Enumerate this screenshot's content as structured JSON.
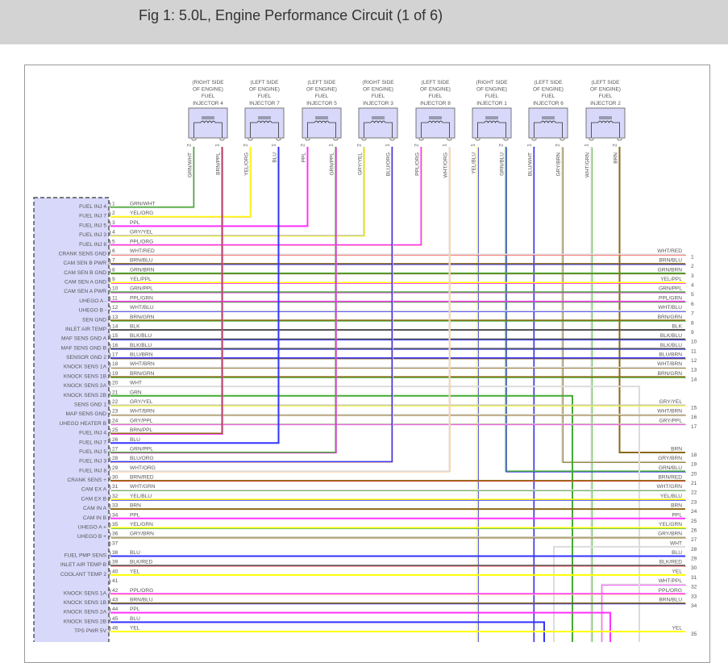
{
  "title": "Fig 1: 5.0L, Engine Performance Circuit (1 of 6)",
  "wire_colors": {
    "GRN": "#44aa33",
    "WHT": "#dcdcdc",
    "YEL": "#ffff00",
    "ORG": "#ffcc99",
    "PPL": "#ff33ff",
    "GRY": "#c8c8b4",
    "RED": "#ff5555",
    "BRN": "#8b6914",
    "BLU": "#3333ff",
    "BLK": "#555555"
  },
  "connector_fill": "#d8d8fa",
  "injectors": [
    {
      "side": "(RIGHT SIDE",
      "side2": "OF ENGINE)",
      "name1": "FUEL",
      "name2": "INJECTOR 4",
      "pins": [
        {
          "num": "2",
          "wire": "GRN/WHT"
        },
        {
          "num": "1",
          "wire": "BRN/PPL"
        }
      ]
    },
    {
      "side": "(LEFT SIDE",
      "side2": "OF ENGINE)",
      "name1": "FUEL",
      "name2": "INJECTOR 7",
      "pins": [
        {
          "num": "2",
          "wire": "YEL/ORG"
        },
        {
          "num": "1",
          "wire": "BLU"
        }
      ]
    },
    {
      "side": "(LEFT SIDE",
      "side2": "OF ENGINE)",
      "name1": "FUEL",
      "name2": "INJECTOR 5",
      "pins": [
        {
          "num": "2",
          "wire": "PPL"
        },
        {
          "num": "1",
          "wire": "GRN/PPL"
        }
      ]
    },
    {
      "side": "(RIGHT SIDE",
      "side2": "OF ENGINE)",
      "name1": "FUEL",
      "name2": "INJECTOR 3",
      "pins": [
        {
          "num": "2",
          "wire": "GRY/YEL"
        },
        {
          "num": "1",
          "wire": "BLU/ORG"
        }
      ]
    },
    {
      "side": "(LEFT SIDE",
      "side2": "OF ENGINE)",
      "name1": "FUEL",
      "name2": "INJECTOR 8",
      "pins": [
        {
          "num": "2",
          "wire": "PPL/ORG"
        },
        {
          "num": "1",
          "wire": "WHT/ORG"
        }
      ]
    },
    {
      "side": "(RIGHT SIDE",
      "side2": "OF ENGINE)",
      "name1": "FUEL",
      "name2": "INJECTOR 1",
      "pins": [
        {
          "num": "1",
          "wire": "YEL/BLU"
        },
        {
          "num": "2",
          "wire": "GRN/BLU"
        }
      ]
    },
    {
      "side": "(LEFT SIDE",
      "side2": "OF ENGINE)",
      "name1": "FUEL",
      "name2": "INJECTOR 6",
      "pins": [
        {
          "num": "1",
          "wire": "BLU/WHT"
        },
        {
          "num": "2",
          "wire": "GRY/BRN"
        }
      ]
    },
    {
      "side": "(LEFT SIDE",
      "side2": "OF ENGINE)",
      "name1": "FUEL",
      "name2": "INJECTOR 2",
      "pins": [
        {
          "num": "1",
          "wire": "WHT/GRN"
        },
        {
          "num": "2",
          "wire": "BRN"
        }
      ]
    }
  ],
  "ecu_pins": [
    {
      "pin": "1",
      "func": "FUEL INJ 4",
      "wire": "GRN/WHT"
    },
    {
      "pin": "2",
      "func": "FUEL INJ 7",
      "wire": "YEL/ORG"
    },
    {
      "pin": "3",
      "func": "FUEL INJ 5",
      "wire": "PPL"
    },
    {
      "pin": "4",
      "func": "FUEL INJ 3",
      "wire": "GRY/YEL"
    },
    {
      "pin": "5",
      "func": "FUEL INJ 8",
      "wire": "PPL/ORG"
    },
    {
      "pin": "6",
      "func": "CRANK SENS GND",
      "wire": "WHT/RED"
    },
    {
      "pin": "7",
      "func": "CAM SEN B PWR",
      "wire": "BRN/BLU"
    },
    {
      "pin": "8",
      "func": "CAM SEN B GND",
      "wire": "GRN/BRN"
    },
    {
      "pin": "9",
      "func": "CAM SEN A GND",
      "wire": "YEL/PPL"
    },
    {
      "pin": "10",
      "func": "CAM SEN A PWR",
      "wire": "GRN/PPL"
    },
    {
      "pin": "11",
      "func": "UHEGO A -",
      "wire": "PPL/GRN"
    },
    {
      "pin": "12",
      "func": "UHEGO B -",
      "wire": "WHT/BLU"
    },
    {
      "pin": "13",
      "func": "SEN GND",
      "wire": "BRN/GRN"
    },
    {
      "pin": "14",
      "func": "INLET AIR TEMP",
      "wire": "BLK"
    },
    {
      "pin": "15",
      "func": "MAF SENS GND A",
      "wire": "BLK/BLU"
    },
    {
      "pin": "16",
      "func": "MAF SENS GND B",
      "wire": "BLK/BLU"
    },
    {
      "pin": "17",
      "func": "SENSOR GND 2",
      "wire": "BLU/BRN"
    },
    {
      "pin": "18",
      "func": "KNOCK SENS 1A",
      "wire": "WHT/BRN"
    },
    {
      "pin": "19",
      "func": "KNOCK SENS 1B",
      "wire": "BRN/GRN"
    },
    {
      "pin": "20",
      "func": "KNOCK SENS 2A",
      "wire": "WHT"
    },
    {
      "pin": "21",
      "func": "KNOCK SENS 2B",
      "wire": "GRN"
    },
    {
      "pin": "22",
      "func": "SENS GND 1",
      "wire": "GRY/YEL"
    },
    {
      "pin": "23",
      "func": "MAP SENS GND",
      "wire": "WHT/BRN"
    },
    {
      "pin": "24",
      "func": "UHEGO HEATER B",
      "wire": "GRY/PPL"
    },
    {
      "pin": "25",
      "func": "FUEL INJ 4",
      "wire": "BRN/PPL"
    },
    {
      "pin": "26",
      "func": "FUEL INJ 7",
      "wire": "BLU"
    },
    {
      "pin": "27",
      "func": "FUEL INJ 5",
      "wire": "GRN/PPL"
    },
    {
      "pin": "28",
      "func": "FUEL INJ 3",
      "wire": "BLU/ORG"
    },
    {
      "pin": "29",
      "func": "FUEL INJ 8",
      "wire": "WHT/ORG"
    },
    {
      "pin": "30",
      "func": "CRANK SENS +",
      "wire": "BRN/RED"
    },
    {
      "pin": "31",
      "func": "CAM EX A",
      "wire": "WHT/GRN"
    },
    {
      "pin": "32",
      "func": "CAM EX B",
      "wire": "YEL/BLU"
    },
    {
      "pin": "33",
      "func": "CAM IN A",
      "wire": "BRN"
    },
    {
      "pin": "34",
      "func": "CAM IN B",
      "wire": "PPL"
    },
    {
      "pin": "35",
      "func": "UHEGO A +",
      "wire": "YEL/GRN"
    },
    {
      "pin": "36",
      "func": "UHEGO B +",
      "wire": "GRY/BRN"
    },
    {
      "pin": "37",
      "func": "",
      "wire": ""
    },
    {
      "pin": "38",
      "func": "FUEL PMP SENS",
      "wire": "BLU"
    },
    {
      "pin": "39",
      "func": "INLET AIR TEMP B",
      "wire": "BLK/RED"
    },
    {
      "pin": "40",
      "func": "COOLANT TEMP 2",
      "wire": "YEL"
    },
    {
      "pin": "41",
      "func": "",
      "wire": ""
    },
    {
      "pin": "42",
      "func": "KNOCK SENS 1A",
      "wire": "PPL/ORG"
    },
    {
      "pin": "43",
      "func": "KNOCK SENS 1B",
      "wire": "BRN/BLU"
    },
    {
      "pin": "44",
      "func": "KNOCK SENS 2A",
      "wire": "PPL"
    },
    {
      "pin": "45",
      "func": "KNOCK SENS 2B",
      "wire": "BLU"
    },
    {
      "pin": "46",
      "func": "TPS PWR 5V",
      "wire": "YEL"
    }
  ],
  "right_terminals": [
    {
      "num": "1",
      "wire": "WHT/RED"
    },
    {
      "num": "2",
      "wire": "BRN/BLU"
    },
    {
      "num": "3",
      "wire": "GRN/BRN"
    },
    {
      "num": "4",
      "wire": "YEL/PPL"
    },
    {
      "num": "5",
      "wire": "GRN/PPL"
    },
    {
      "num": "6",
      "wire": "PPL/GRN"
    },
    {
      "num": "7",
      "wire": "WHT/BLU"
    },
    {
      "num": "8",
      "wire": "BRN/GRN"
    },
    {
      "num": "9",
      "wire": "BLK"
    },
    {
      "num": "10",
      "wire": "BLK/BLU"
    },
    {
      "num": "11",
      "wire": "BLK/BLU"
    },
    {
      "num": "12",
      "wire": "BLU/BRN"
    },
    {
      "num": "13",
      "wire": "WHT/BRN"
    },
    {
      "num": "14",
      "wire": "BRN/GRN"
    },
    {
      "num": "15",
      "wire": "GRY/YEL"
    },
    {
      "num": "16",
      "wire": "WHT/BRN"
    },
    {
      "num": "17",
      "wire": "GRY/PPL"
    },
    {
      "num": "18",
      "wire": "BRN"
    },
    {
      "num": "19",
      "wire": "GRY/BRN"
    },
    {
      "num": "20",
      "wire": "GRN/BLU"
    },
    {
      "num": "21",
      "wire": "BRN/RED"
    },
    {
      "num": "22",
      "wire": "WHT/GRN"
    },
    {
      "num": "23",
      "wire": "YEL/BLU"
    },
    {
      "num": "24",
      "wire": "BRN"
    },
    {
      "num": "25",
      "wire": "PPL"
    },
    {
      "num": "26",
      "wire": "YEL/GRN"
    },
    {
      "num": "27",
      "wire": "GRY/BRN"
    },
    {
      "num": "28",
      "wire": "WHT"
    },
    {
      "num": "29",
      "wire": "BLU"
    },
    {
      "num": "30",
      "wire": "BLK/RED"
    },
    {
      "num": "31",
      "wire": "YEL"
    },
    {
      "num": "32",
      "wire": "WHT/PPL"
    },
    {
      "num": "33",
      "wire": "PPL/ORG"
    },
    {
      "num": "34",
      "wire": "BRN/BLU"
    },
    {
      "num": "35",
      "wire": "YEL"
    }
  ]
}
